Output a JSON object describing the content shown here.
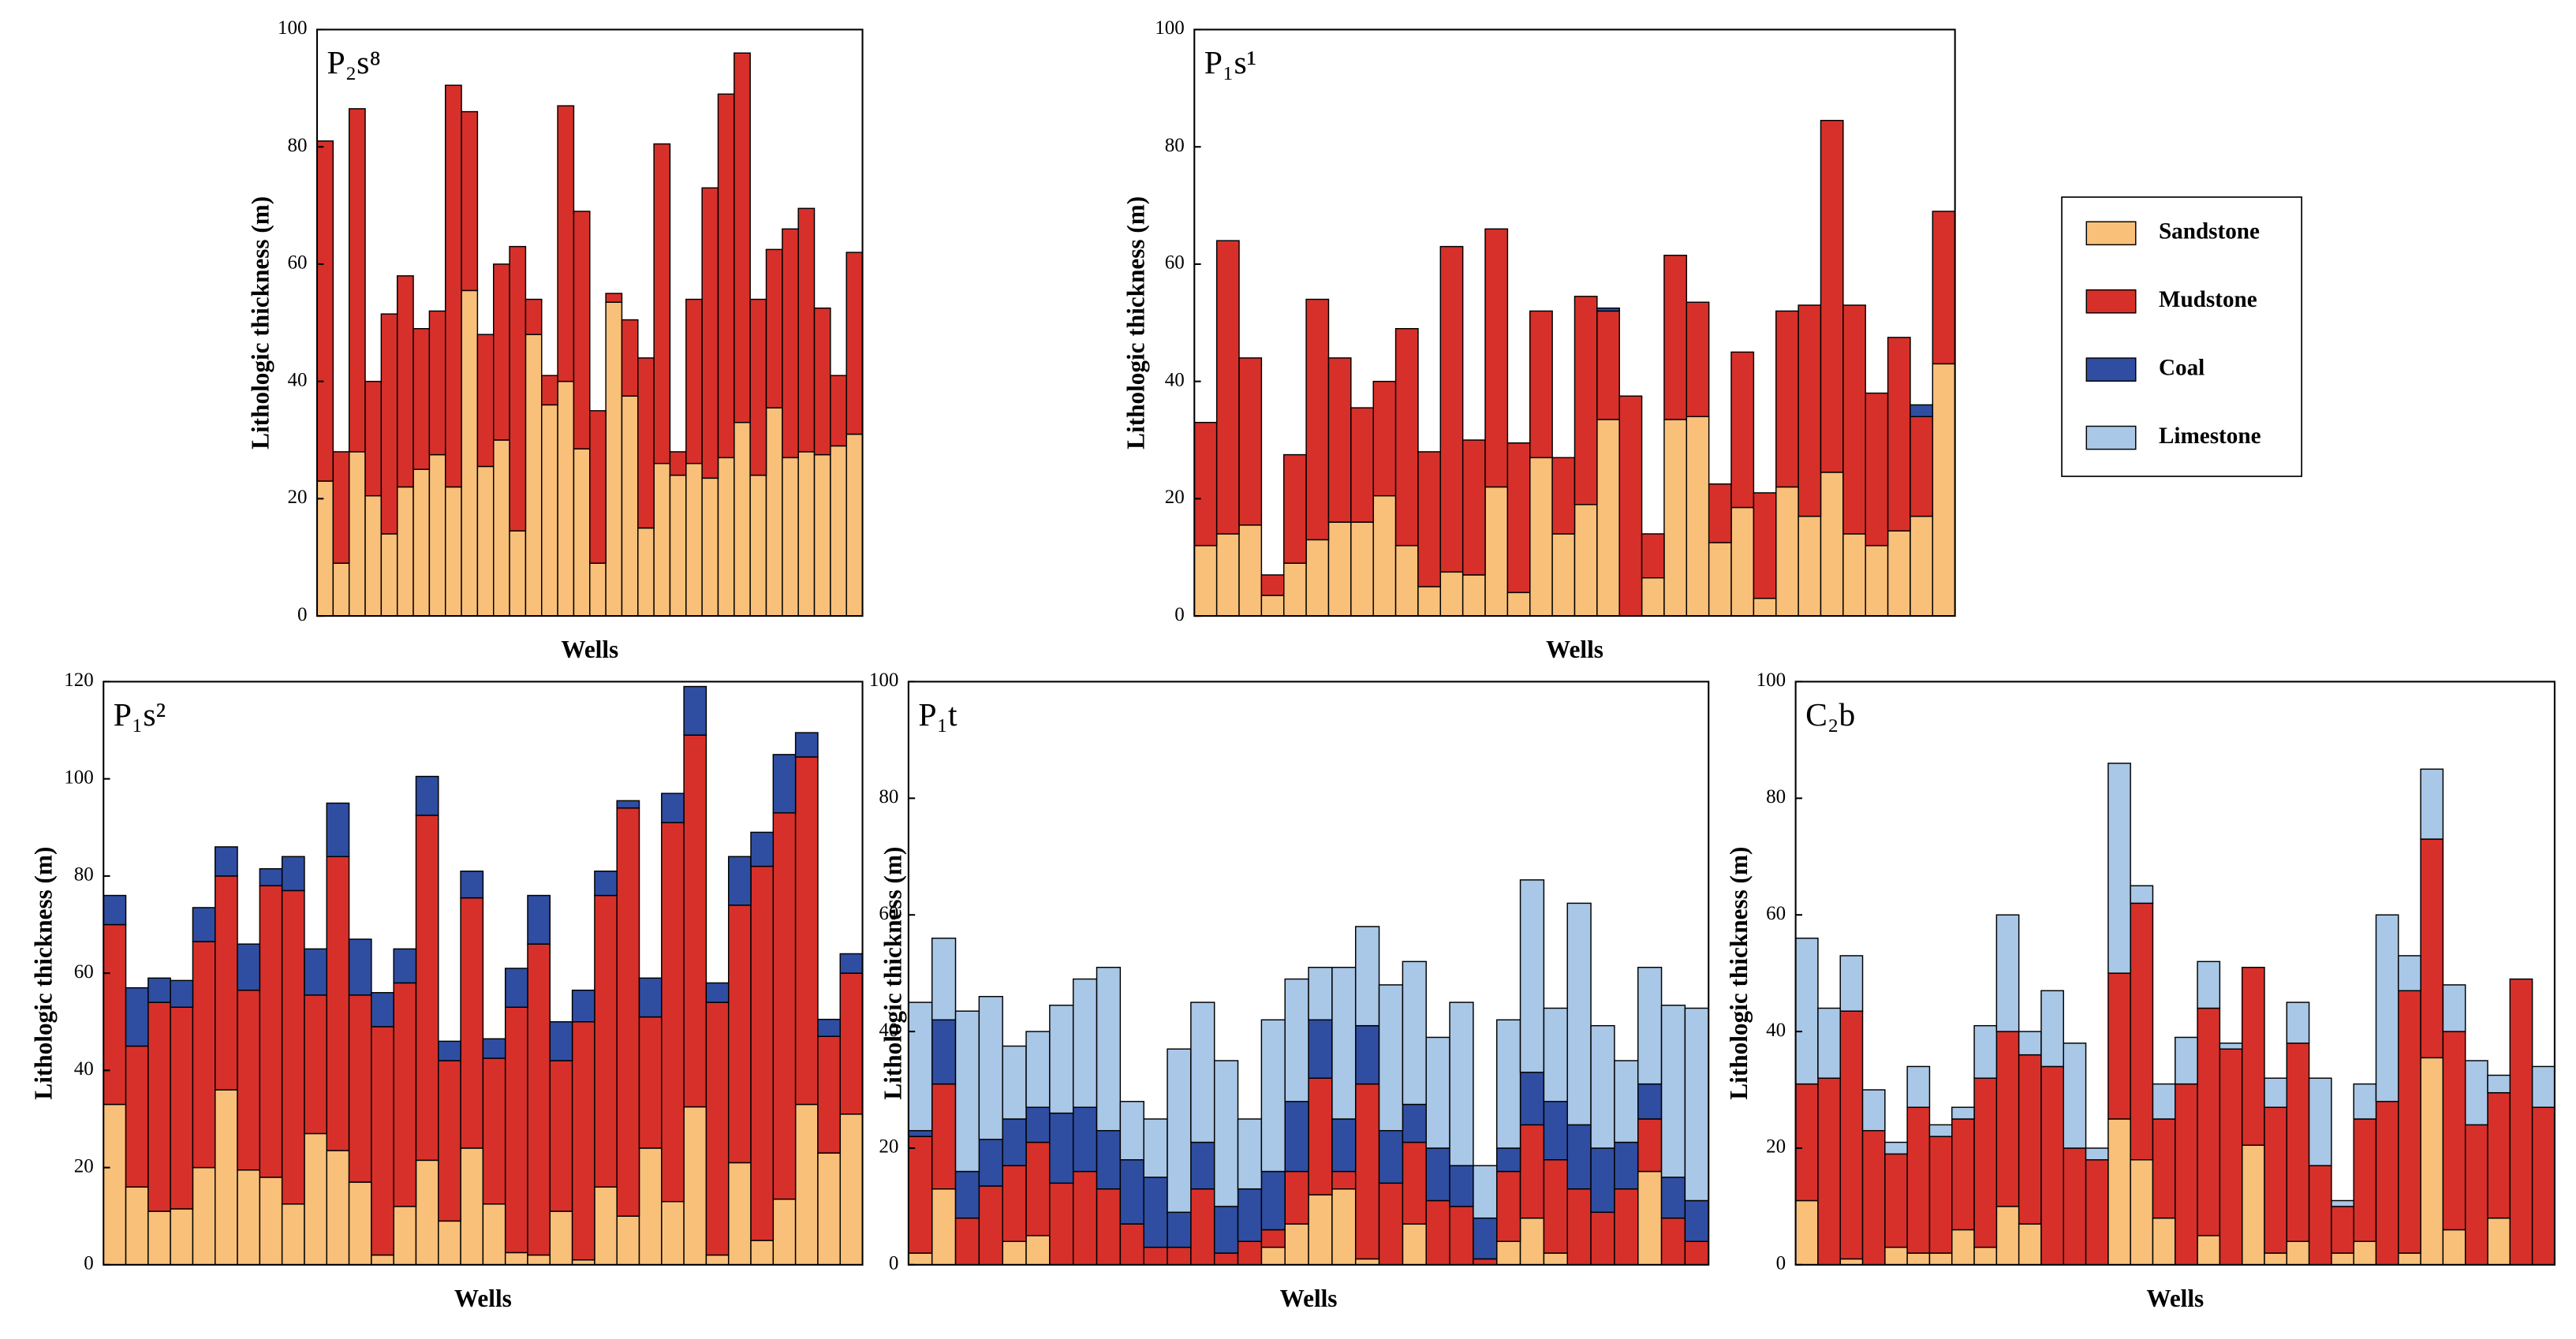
{
  "chart_data": [
    {
      "type": "bar",
      "stacked": true,
      "title": "P₂s⁸",
      "xlabel": "Wells",
      "ylabel": "Lithologic thickness (m)",
      "ylim": [
        0,
        100
      ],
      "yticks": [
        0,
        20,
        40,
        60,
        80,
        100
      ],
      "series": [
        {
          "name": "Sandstone",
          "color": "#f9c07a",
          "values": [
            23,
            9,
            28,
            20.5,
            14,
            22,
            25,
            27.5,
            22,
            55.5,
            25.5,
            30,
            14.5,
            48,
            36,
            40,
            28.5,
            9,
            53.5,
            37.5,
            15,
            26,
            24,
            26,
            23.5,
            27,
            33,
            24,
            35.5,
            27,
            28,
            27.5,
            29,
            31
          ]
        },
        {
          "name": "Mudstone",
          "color": "#d7302a",
          "values": [
            58,
            19,
            58.5,
            19.5,
            37.5,
            36,
            24,
            24.5,
            68.5,
            30.5,
            22.5,
            30,
            48.5,
            6,
            5,
            47,
            40.5,
            26,
            1.5,
            13,
            29,
            54.5,
            4,
            28,
            49.5,
            62,
            63,
            30,
            27,
            39,
            41.5,
            25,
            12,
            31
          ]
        }
      ]
    },
    {
      "type": "bar",
      "stacked": true,
      "title": "P₁s¹",
      "xlabel": "Wells",
      "ylabel": "Lithologic thickness (m)",
      "ylim": [
        0,
        100
      ],
      "yticks": [
        0,
        20,
        40,
        60,
        80,
        100
      ],
      "series": [
        {
          "name": "Sandstone",
          "color": "#f9c07a",
          "values": [
            12,
            14,
            15.5,
            3.5,
            9,
            13,
            16,
            16,
            20.5,
            12,
            5,
            7.5,
            7,
            22,
            4,
            27,
            14,
            19,
            33.5,
            0,
            6.5,
            33.5,
            34,
            12.5,
            18.5,
            3,
            22,
            17,
            24.5,
            14,
            12,
            14.5,
            17,
            43
          ]
        },
        {
          "name": "Mudstone",
          "color": "#d7302a",
          "values": [
            21,
            50,
            28.5,
            3.5,
            18.5,
            41,
            28,
            19.5,
            19.5,
            37,
            23,
            55.5,
            23,
            44,
            25.5,
            25,
            13,
            35.5,
            18.5,
            37.5,
            7.5,
            28,
            19.5,
            10,
            26.5,
            18,
            30,
            36,
            60,
            39,
            26,
            33,
            17,
            26
          ]
        },
        {
          "name": "Coal",
          "color": "#2f4ea2",
          "values": [
            0,
            0,
            0,
            0,
            0,
            0,
            0,
            0,
            0,
            0,
            0,
            0,
            0,
            0,
            0,
            0,
            0,
            0,
            0.5,
            0,
            0,
            0,
            0,
            0,
            0,
            0,
            0,
            0,
            0,
            0,
            0,
            0,
            2,
            0
          ]
        }
      ]
    },
    {
      "type": "bar",
      "stacked": true,
      "title": "P₁s²",
      "xlabel": "Wells",
      "ylabel": "Lithologic thickness (m)",
      "ylim": [
        0,
        120
      ],
      "yticks": [
        0,
        20,
        40,
        60,
        80,
        100,
        120
      ],
      "series": [
        {
          "name": "Sandstone",
          "color": "#f9c07a",
          "values": [
            33,
            16,
            11,
            11.5,
            20,
            36,
            19.5,
            18,
            12.5,
            27,
            23.5,
            17,
            2,
            12,
            21.5,
            9,
            24,
            12.5,
            2.5,
            2,
            11,
            1,
            16,
            10,
            24,
            13,
            32.5,
            2,
            21,
            5,
            13.5,
            33,
            23,
            31
          ]
        },
        {
          "name": "Mudstone",
          "color": "#d7302a",
          "values": [
            37,
            29,
            43,
            41.5,
            46.5,
            44,
            37,
            60,
            64.5,
            28.5,
            60.5,
            38.5,
            47,
            46,
            71,
            33,
            51.5,
            30,
            50.5,
            64,
            31,
            49,
            60,
            84,
            27,
            78,
            76.5,
            52,
            53,
            77,
            79.5,
            71.5,
            24,
            29
          ]
        },
        {
          "name": "Coal",
          "color": "#2f4ea2",
          "values": [
            6,
            12,
            5,
            5.5,
            7,
            6,
            9.5,
            3.5,
            7,
            9.5,
            11,
            11.5,
            7,
            7,
            8,
            4,
            5.5,
            4,
            8,
            10,
            8,
            6.5,
            5,
            1.5,
            8,
            6,
            10,
            4,
            10,
            7,
            12,
            5,
            3.5,
            4
          ]
        }
      ]
    },
    {
      "type": "bar",
      "stacked": true,
      "title": "P₁t",
      "xlabel": "Wells",
      "ylabel": "Lithologic thickness (m)",
      "ylim": [
        0,
        100
      ],
      "yticks": [
        0,
        20,
        40,
        60,
        80,
        100
      ],
      "series": [
        {
          "name": "Sandstone",
          "color": "#f9c07a",
          "values": [
            2,
            13,
            0,
            0,
            4,
            5,
            0,
            0,
            0,
            0,
            0,
            0,
            0,
            0,
            0,
            3,
            7,
            12,
            13,
            1,
            0,
            7,
            0,
            0,
            0,
            4,
            8,
            2,
            0,
            0,
            0,
            16,
            0,
            0
          ]
        },
        {
          "name": "Mudstone",
          "color": "#d7302a",
          "values": [
            20,
            18,
            8,
            13.5,
            13,
            16,
            14,
            16,
            13,
            7,
            3,
            3,
            13,
            2,
            4,
            3,
            9,
            20,
            3,
            30,
            14,
            14,
            11,
            10,
            1,
            12,
            16,
            16,
            13,
            9,
            13,
            9,
            8,
            4
          ]
        },
        {
          "name": "Coal",
          "color": "#2f4ea2",
          "values": [
            1,
            11,
            8,
            8,
            8,
            6,
            12,
            11,
            10,
            11,
            12,
            6,
            8,
            8,
            9,
            10,
            12,
            10,
            9,
            10,
            9,
            6.5,
            9,
            7,
            7,
            4,
            9,
            10,
            11,
            11,
            8,
            6,
            7,
            7
          ]
        },
        {
          "name": "Limestone",
          "color": "#a9c7e6",
          "values": [
            22,
            14,
            27.5,
            24.5,
            12.5,
            13,
            18.5,
            22,
            28,
            10,
            10,
            28,
            24,
            25,
            12,
            26,
            21,
            9,
            26,
            17,
            25,
            24.5,
            19,
            28,
            9,
            22,
            33,
            16,
            38,
            21,
            14,
            20,
            29.5,
            33
          ]
        }
      ]
    },
    {
      "type": "bar",
      "stacked": true,
      "title": "C₂b",
      "xlabel": "Wells",
      "ylabel": "Lithologic thickness (m)",
      "ylim": [
        0,
        100
      ],
      "yticks": [
        0,
        20,
        40,
        60,
        80,
        100
      ],
      "series": [
        {
          "name": "Sandstone",
          "color": "#f9c07a",
          "values": [
            11,
            0,
            1,
            0,
            3,
            2,
            2,
            6,
            3,
            10,
            7,
            0,
            0,
            0,
            25,
            18,
            8,
            0,
            5,
            0,
            20.5,
            2,
            4,
            0,
            2,
            4,
            0,
            2,
            35.5,
            6,
            0,
            8,
            0,
            0
          ]
        },
        {
          "name": "Mudstone",
          "color": "#d7302a",
          "values": [
            20,
            32,
            42.5,
            23,
            16,
            25,
            20,
            19,
            29,
            30,
            29,
            34,
            20,
            18,
            25,
            44,
            17,
            31,
            39,
            37,
            30.5,
            25,
            34,
            17,
            8,
            21,
            28,
            45,
            37.5,
            34,
            24,
            21.5,
            49,
            27
          ]
        },
        {
          "name": "Limestone",
          "color": "#a9c7e6",
          "values": [
            25,
            12,
            9.5,
            7,
            2,
            7,
            2,
            2,
            9,
            20,
            4,
            13,
            18,
            2,
            36,
            3,
            6,
            8,
            8,
            1,
            0,
            5,
            7,
            15,
            1,
            6,
            32,
            6,
            12,
            8,
            11,
            3,
            0,
            7
          ]
        }
      ]
    }
  ]
}
